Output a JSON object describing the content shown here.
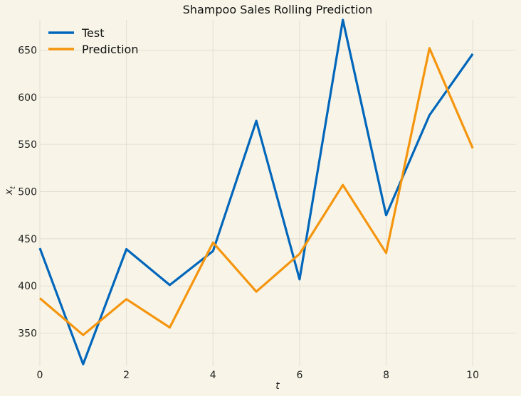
{
  "chart_data": {
    "type": "line",
    "title": "Shampoo Sales Rolling Prediction",
    "xlabel": "t",
    "ylabel_main": "x",
    "ylabel_sub": "t",
    "xlim": [
      0,
      11
    ],
    "ylim": [
      315,
      682
    ],
    "x_ticks": [
      0,
      2,
      4,
      6,
      8,
      10
    ],
    "y_ticks": [
      350,
      400,
      450,
      500,
      550,
      600,
      650
    ],
    "grid": true,
    "legend_position": "top-left",
    "x": [
      0,
      1,
      2,
      3,
      4,
      5,
      6,
      7,
      8,
      9,
      10
    ],
    "series": [
      {
        "name": "Test",
        "color": "#0066bb",
        "values": [
          440,
          317,
          439,
          401,
          437,
          575,
          407,
          682,
          475,
          581,
          646
        ]
      },
      {
        "name": "Prediction",
        "color": "#f5950e",
        "values": [
          387,
          348,
          386,
          356,
          446,
          394,
          434,
          507,
          435,
          652,
          546
        ]
      }
    ]
  }
}
